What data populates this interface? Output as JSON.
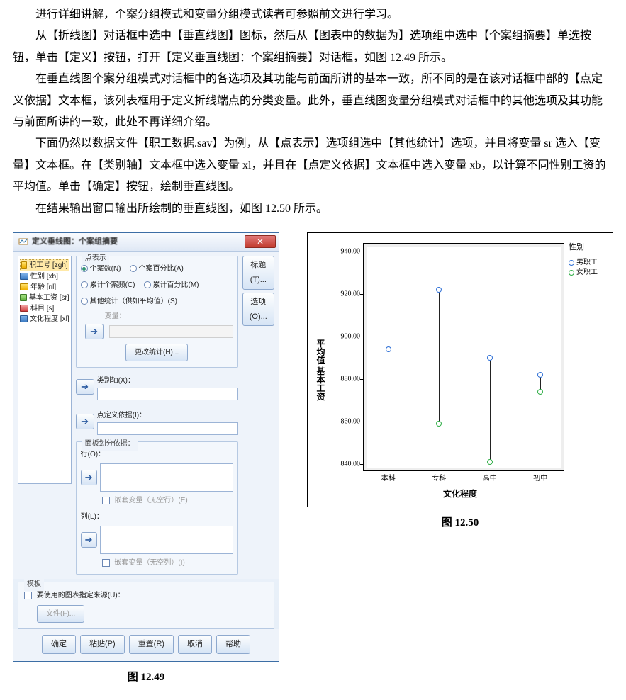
{
  "paragraphs": [
    "进行详细讲解，个案分组模式和变量分组模式读者可参照前文进行学习。",
    "从【折线图】对话框中选中【垂直线图】图标，然后从【图表中的数据为】选项组中选中【个案组摘要】单选按钮，单击【定义】按钮，打开【定义垂直线图：个案组摘要】对话框，如图 12.49 所示。",
    "在垂直线图个案分组模式对话框中的各选项及其功能与前面所讲的基本一致，所不同的是在该对话框中部的【点定义依据】文本框，该列表框用于定义折线端点的分类变量。此外，垂直线图变量分组模式对话框中的其他选项及其功能与前面所讲的一致，此处不再详细介绍。",
    "下面仍然以数据文件【职工数据.sav】为例，从【点表示】选项组选中【其他统计】选项，并且将变量 sr 选入【变量】文本框。在【类别轴】文本框中选入变量 xl，并且在【点定义依据】文本框中选入变量 xb，以计算不同性别工资的平均值。单击【确定】按钮，绘制垂直线图。",
    "在结果输出窗口输出所绘制的垂直线图，如图 12.50 所示。"
  ],
  "dialog": {
    "title": "定义垂线图：个案组摘要",
    "vars": [
      {
        "label": "职工号 [zgh]",
        "icon": "ic-yellow",
        "sel": true
      },
      {
        "label": "性别 [xb]",
        "icon": "ic-blue",
        "sel": false
      },
      {
        "label": "年龄 [nl]",
        "icon": "ic-yellow",
        "sel": false
      },
      {
        "label": "基本工资 [sr]",
        "icon": "ic-green",
        "sel": false
      },
      {
        "label": "科目 [s]",
        "icon": "ic-red",
        "sel": false
      },
      {
        "label": "文化程度 [xl]",
        "icon": "ic-blue",
        "sel": false
      }
    ],
    "group_points_title": "点表示",
    "radios": [
      {
        "label": "个案数(N)",
        "checked": true
      },
      {
        "label": "个案百分比(A)",
        "checked": false
      },
      {
        "label": "累计个案频(C)",
        "checked": false
      },
      {
        "label": "累计百分比(M)",
        "checked": false
      },
      {
        "label": "其他统计（供如平均值）(S)",
        "checked": false
      }
    ],
    "var_label": "变量：",
    "change_stat_btn": "更改统计(H)...",
    "cat_axis_label": "类别轴(X)：",
    "point_def_label": "点定义依据(I)：",
    "panel_title": "面板划分依据：",
    "rows_label": "行(O)：",
    "nest_rows": "嵌套变量（无空行）(E)",
    "cols_label": "列(L)：",
    "nest_cols": "嵌套变量（无空列）(I)",
    "template_title": "模板",
    "template_check": "要使用的图表指定来源(U)：",
    "file_btn": "文件(F)...",
    "right_title_btn": "标题(T)...",
    "right_option_btn": "选项(O)...",
    "bottom_btns": [
      "确定",
      "粘贴(P)",
      "重置(R)",
      "取消",
      "帮助"
    ]
  },
  "chart": {
    "y": {
      "min": 836,
      "max": 944,
      "ticks": [
        840,
        860,
        880,
        900,
        920,
        940
      ]
    },
    "ylabel": "平均值 基本工资",
    "xlabel": "文化程度",
    "categories": [
      "本科",
      "专科",
      "高中",
      "初中"
    ],
    "series": [
      {
        "cat": "本科",
        "male": 894,
        "female": null
      },
      {
        "cat": "专科",
        "male": 922,
        "female": 859
      },
      {
        "cat": "高中",
        "male": 890,
        "female": 841
      },
      {
        "cat": "初中",
        "male": 882,
        "female": 874
      }
    ],
    "colors": {
      "male": "#2e6fd6",
      "female": "#2fae46"
    },
    "legend_title": "性别",
    "legend_items": [
      {
        "label": "男职工",
        "key": "male"
      },
      {
        "label": "女职工",
        "key": "female"
      }
    ]
  },
  "captions": {
    "left": "图 12.49",
    "right": "图 12.50"
  }
}
